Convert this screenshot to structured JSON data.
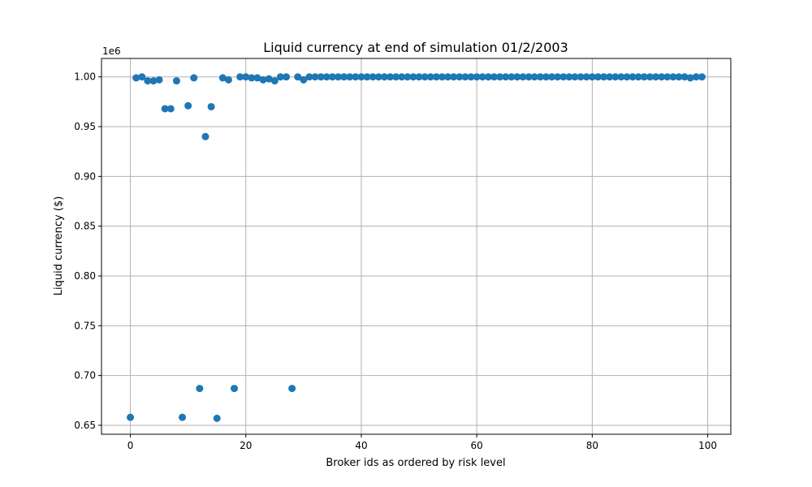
{
  "chart_data": {
    "type": "scatter",
    "title": "Liquid currency at end of simulation 01/2/2003",
    "xlabel": "Broker ids as ordered by risk level",
    "ylabel": "Liquid currency ($)",
    "y_offset_label": "1e6",
    "xlim": [
      -5,
      104
    ],
    "ylim": [
      0.641,
      1.0185
    ],
    "x_ticks": [
      0,
      20,
      40,
      60,
      80,
      100
    ],
    "x_tick_labels": [
      "0",
      "20",
      "40",
      "60",
      "80",
      "100"
    ],
    "y_ticks": [
      0.65,
      0.7,
      0.75,
      0.8,
      0.85,
      0.9,
      0.95,
      1.0
    ],
    "y_tick_labels": [
      "0.65",
      "0.70",
      "0.75",
      "0.80",
      "0.85",
      "0.90",
      "0.95",
      "1.00"
    ],
    "grid": true,
    "color": "#1f77b4",
    "x": [
      0,
      1,
      2,
      3,
      4,
      5,
      6,
      7,
      8,
      9,
      10,
      11,
      12,
      13,
      14,
      15,
      16,
      17,
      18,
      19,
      20,
      21,
      22,
      23,
      24,
      25,
      26,
      27,
      28,
      29,
      30,
      31,
      32,
      33,
      34,
      35,
      36,
      37,
      38,
      39,
      40,
      41,
      42,
      43,
      44,
      45,
      46,
      47,
      48,
      49,
      50,
      51,
      52,
      53,
      54,
      55,
      56,
      57,
      58,
      59,
      60,
      61,
      62,
      63,
      64,
      65,
      66,
      67,
      68,
      69,
      70,
      71,
      72,
      73,
      74,
      75,
      76,
      77,
      78,
      79,
      80,
      81,
      82,
      83,
      84,
      85,
      86,
      87,
      88,
      89,
      90,
      91,
      92,
      93,
      94,
      95,
      96,
      97,
      98,
      99
    ],
    "y": [
      0.658,
      0.999,
      1.0,
      0.996,
      0.996,
      0.997,
      0.968,
      0.968,
      0.996,
      0.658,
      0.971,
      0.999,
      0.687,
      0.94,
      0.97,
      0.657,
      0.999,
      0.997,
      0.687,
      1.0,
      1.0,
      0.999,
      0.999,
      0.997,
      0.998,
      0.996,
      1.0,
      1.0,
      0.687,
      1.0,
      0.997,
      1.0,
      1.0,
      1.0,
      1.0,
      1.0,
      1.0,
      1.0,
      1.0,
      1.0,
      1.0,
      1.0,
      1.0,
      1.0,
      1.0,
      1.0,
      1.0,
      1.0,
      1.0,
      1.0,
      1.0,
      1.0,
      1.0,
      1.0,
      1.0,
      1.0,
      1.0,
      1.0,
      1.0,
      1.0,
      1.0,
      1.0,
      1.0,
      1.0,
      1.0,
      1.0,
      1.0,
      1.0,
      1.0,
      1.0,
      1.0,
      1.0,
      1.0,
      1.0,
      1.0,
      1.0,
      1.0,
      1.0,
      1.0,
      1.0,
      1.0,
      1.0,
      1.0,
      1.0,
      1.0,
      1.0,
      1.0,
      1.0,
      1.0,
      1.0,
      1.0,
      1.0,
      1.0,
      1.0,
      1.0,
      1.0,
      1.0,
      0.999,
      1.0,
      1.0
    ]
  }
}
